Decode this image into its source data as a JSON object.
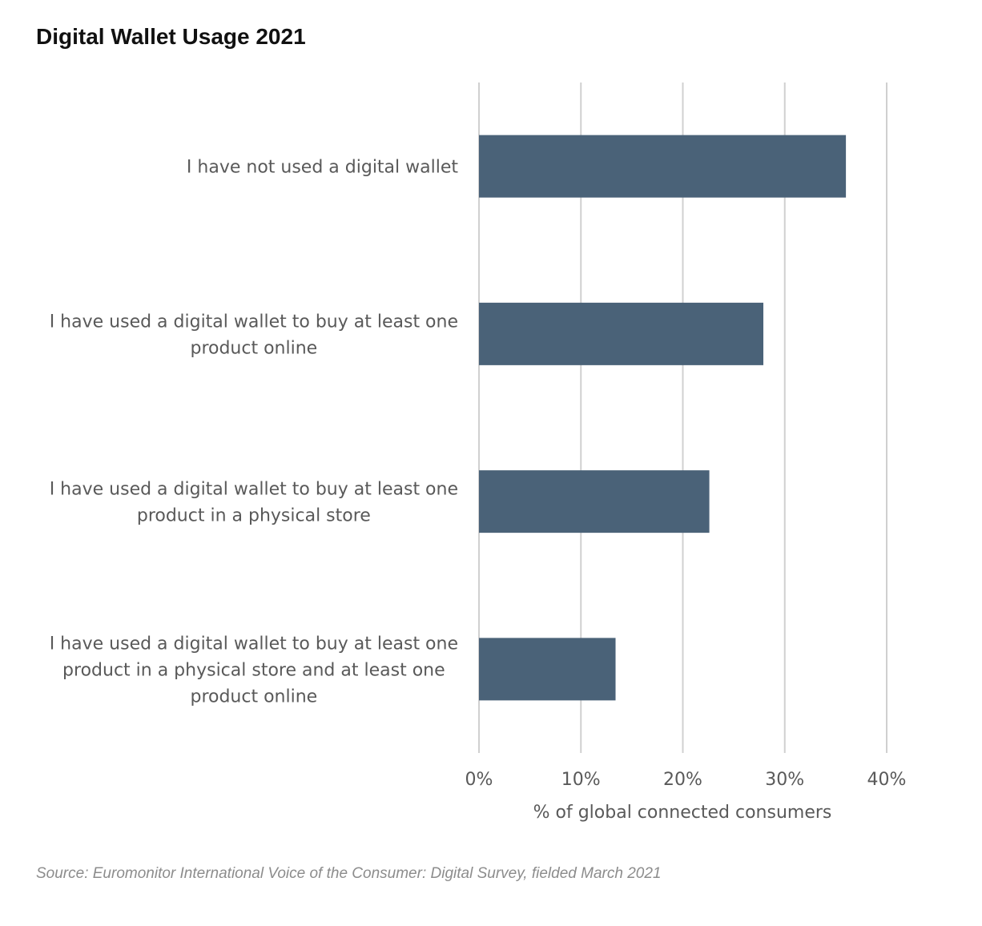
{
  "chart_data": {
    "type": "bar",
    "orientation": "horizontal",
    "title": "Digital Wallet Usage 2021",
    "source": "Source: Euromonitor International Voice of the Consumer: Digital Survey, fielded March 2021",
    "categories": [
      "I have not used a digital wallet",
      "I have used a digital wallet to buy at least one product online",
      "I have used a digital wallet to buy at least one product in a physical store",
      "I have used a digital wallet to buy at least one product in a physical store and at least one product online"
    ],
    "category_lines": [
      [
        "I have not used a digital wallet"
      ],
      [
        "I have used a digital wallet to buy at least one",
        "product online"
      ],
      [
        "I have used a digital wallet to buy at least one",
        "product in a physical store"
      ],
      [
        "I have used a digital wallet to buy at least one",
        "product in a physical store and at least one",
        "product online"
      ]
    ],
    "values": [
      36,
      27.9,
      22.6,
      13.4
    ],
    "xlabel": "% of global connected consumers",
    "ylabel": "",
    "xlim": [
      0,
      40
    ],
    "ticks": [
      "0%",
      "10%",
      "20%",
      "30%",
      "40%"
    ],
    "tick_values": [
      0,
      10,
      20,
      30,
      40
    ],
    "grid": true,
    "bar_color": "#4a6278",
    "grid_color": "#d0d0d0"
  }
}
